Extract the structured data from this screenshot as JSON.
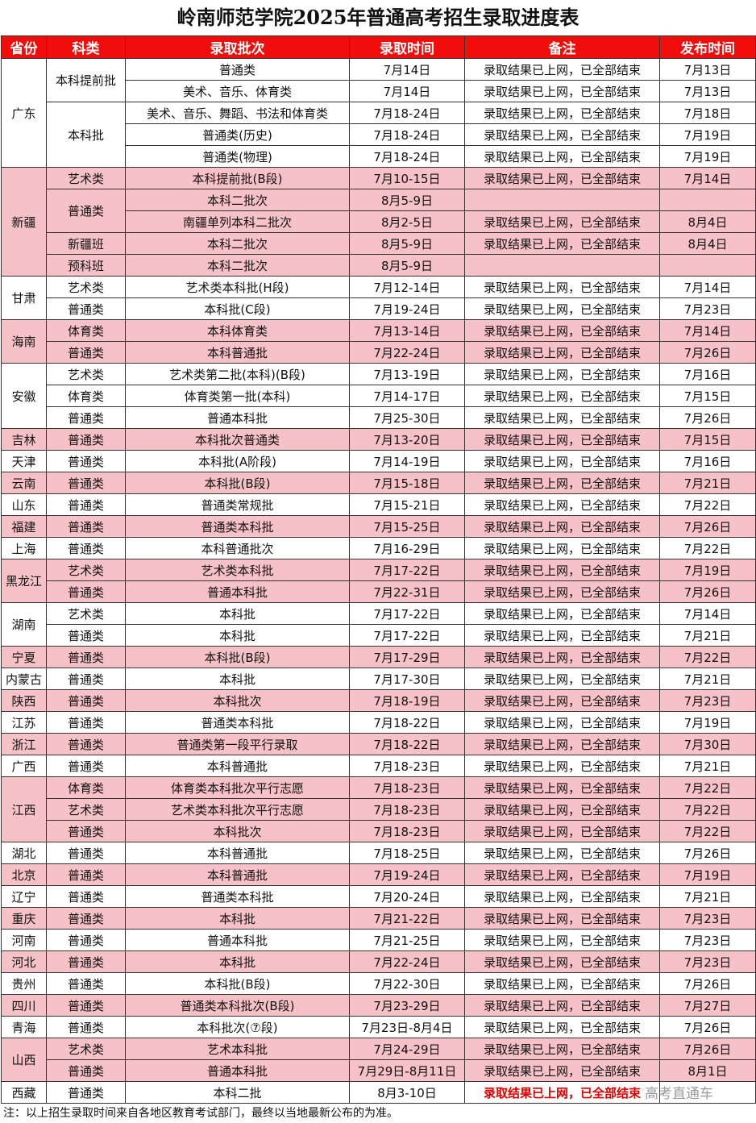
{
  "title": "岭南师范学院2025年普通高考招生录取进度表",
  "table": {
    "header": [
      "省份",
      "科类",
      "录取批次",
      "录取时间",
      "备注",
      "发布时间"
    ],
    "groups": [
      {
        "province": "广东",
        "categories": [
          {
            "name": "本科提前批",
            "rows": [
              [
                "普通类",
                "7月14日",
                "录取结果已上网，已全部结束",
                "7月13日"
              ],
              [
                "美术、音乐、体育类",
                "7月14日",
                "录取结果已上网，已全部结束",
                "7月13日"
              ]
            ]
          },
          {
            "name": "本科批",
            "rows": [
              [
                "美术、音乐、舞蹈、书法和体育类",
                "7月18-24日",
                "录取结果已上网，已全部结束",
                "7月18日"
              ],
              [
                "普通类(历史)",
                "7月18-24日",
                "录取结果已上网，已全部结束",
                "7月19日"
              ],
              [
                "普通类(物理)",
                "7月18-24日",
                "录取结果已上网，已全部结束",
                "7月19日"
              ]
            ]
          }
        ]
      },
      {
        "province": "新疆",
        "categories": [
          {
            "name": "艺术类",
            "rows": [
              [
                "本科提前批(B段)",
                "7月10-15日",
                "录取结果已上网，已全部结束",
                "7月14日"
              ]
            ]
          },
          {
            "name": "普通类",
            "rows": [
              [
                "本科二批次",
                "8月5-9日",
                null,
                null
              ],
              [
                "南疆单列本科二批次",
                "8月2-5日",
                "录取结果已上网，已全部结束",
                "8月4日"
              ]
            ]
          },
          {
            "name": "新疆班",
            "rows": [
              [
                "本科二批次",
                "8月5-9日",
                "录取结果已上网，已全部结束",
                "8月4日"
              ]
            ]
          },
          {
            "name": "预科班",
            "rows": [
              [
                "本科二批次",
                "8月5-9日",
                null,
                null
              ]
            ]
          }
        ]
      },
      {
        "province": "甘肃",
        "categories": [
          {
            "name": "艺术类",
            "rows": [
              [
                "艺术类本科批(H段)",
                "7月12-14日",
                "录取结果已上网，已全部结束",
                "7月14日"
              ]
            ]
          },
          {
            "name": "普通类",
            "rows": [
              [
                "本科批(C段)",
                "7月19-24日",
                "录取结果已上网，已全部结束",
                "7月23日"
              ]
            ]
          }
        ]
      },
      {
        "province": "海南",
        "categories": [
          {
            "name": "体育类",
            "rows": [
              [
                "本科体育类",
                "7月13-14日",
                "录取结果已上网，已全部结束",
                "7月14日"
              ]
            ]
          },
          {
            "name": "普通类",
            "rows": [
              [
                "本科普通批",
                "7月22-24日",
                "录取结果已上网，已全部结束",
                "7月26日"
              ]
            ]
          }
        ]
      },
      {
        "province": "安徽",
        "categories": [
          {
            "name": "艺术类",
            "rows": [
              [
                "艺术类第二批(本科)(B段)",
                "7月13-19日",
                "录取结果已上网，已全部结束",
                "7月16日"
              ]
            ]
          },
          {
            "name": "体育类",
            "rows": [
              [
                "体育类第一批(本科)",
                "7月14-17日",
                "录取结果已上网，已全部结束",
                "7月15日"
              ]
            ]
          },
          {
            "name": "普通类",
            "rows": [
              [
                "普通本科批",
                "7月25-30日",
                "录取结果已上网，已全部结束",
                "7月26日"
              ]
            ]
          }
        ]
      },
      {
        "province": "吉林",
        "categories": [
          {
            "name": "普通类",
            "rows": [
              [
                "本科批次普通类",
                "7月13-20日",
                "录取结果已上网，已全部结束",
                "7月15日"
              ]
            ]
          }
        ]
      },
      {
        "province": "天津",
        "categories": [
          {
            "name": "普通类",
            "rows": [
              [
                "本科批(A阶段)",
                "7月14-19日",
                "录取结果已上网，已全部结束",
                "7月16日"
              ]
            ]
          }
        ]
      },
      {
        "province": "云南",
        "categories": [
          {
            "name": "普通类",
            "rows": [
              [
                "本科批(B段)",
                "7月15-18日",
                "录取结果已上网，已全部结束",
                "7月21日"
              ]
            ]
          }
        ]
      },
      {
        "province": "山东",
        "categories": [
          {
            "name": "普通类",
            "rows": [
              [
                "普通类常规批",
                "7月15-21日",
                "录取结果已上网，已全部结束",
                "7月22日"
              ]
            ]
          }
        ]
      },
      {
        "province": "福建",
        "categories": [
          {
            "name": "普通类",
            "rows": [
              [
                "普通类本科批",
                "7月15-25日",
                "录取结果已上网，已全部结束",
                "7月26日"
              ]
            ]
          }
        ]
      },
      {
        "province": "上海",
        "categories": [
          {
            "name": "普通类",
            "rows": [
              [
                "本科普通批次",
                "7月16-29日",
                "录取结果已上网，已全部结束",
                "7月22日"
              ]
            ]
          }
        ]
      },
      {
        "province": "黑龙江",
        "categories": [
          {
            "name": "艺术类",
            "rows": [
              [
                "艺术类本科批",
                "7月17-22日",
                "录取结果已上网，已全部结束",
                "7月19日"
              ]
            ]
          },
          {
            "name": "普通类",
            "rows": [
              [
                "普通本科批",
                "7月22-31日",
                "录取结果已上网，已全部结束",
                "7月26日"
              ]
            ]
          }
        ]
      },
      {
        "province": "湖南",
        "categories": [
          {
            "name": "艺术类",
            "rows": [
              [
                "本科批",
                "7月17-22日",
                "录取结果已上网，已全部结束",
                "7月14日"
              ]
            ]
          },
          {
            "name": "普通类",
            "rows": [
              [
                "本科批",
                "7月17-22日",
                "录取结果已上网，已全部结束",
                "7月21日"
              ]
            ]
          }
        ]
      },
      {
        "province": "宁夏",
        "categories": [
          {
            "name": "普通类",
            "rows": [
              [
                "本科批(B段)",
                "7月17-29日",
                "录取结果已上网，已全部结束",
                "7月22日"
              ]
            ]
          }
        ]
      },
      {
        "province": "内蒙古",
        "categories": [
          {
            "name": "普通类",
            "rows": [
              [
                "本科批",
                "7月17-30日",
                "录取结果已上网，已全部结束",
                "7月21日"
              ]
            ]
          }
        ]
      },
      {
        "province": "陕西",
        "categories": [
          {
            "name": "普通类",
            "rows": [
              [
                "本科批次",
                "7月18-19日",
                "录取结果已上网，已全部结束",
                "7月23日"
              ]
            ]
          }
        ]
      },
      {
        "province": "江苏",
        "categories": [
          {
            "name": "普通类",
            "rows": [
              [
                "普通类本科批",
                "7月18-22日",
                "录取结果已上网，已全部结束",
                "7月19日"
              ]
            ]
          }
        ]
      },
      {
        "province": "浙江",
        "categories": [
          {
            "name": "普通类",
            "rows": [
              [
                "普通类第一段平行录取",
                "7月18-22日",
                "录取结果已上网，已全部结束",
                "7月30日"
              ]
            ]
          }
        ]
      },
      {
        "province": "广西",
        "categories": [
          {
            "name": "普通类",
            "rows": [
              [
                "本科普通批",
                "7月18-23日",
                "录取结果已上网，已全部结束",
                "7月21日"
              ]
            ]
          }
        ]
      },
      {
        "province": "江西",
        "categories": [
          {
            "name": "体育类",
            "rows": [
              [
                "体育类本科批次平行志愿",
                "7月18-23日",
                "录取结果已上网，已全部结束",
                "7月22日"
              ]
            ]
          },
          {
            "name": "艺术类",
            "rows": [
              [
                "艺术类本科批次平行志愿",
                "7月18-23日",
                "录取结果已上网，已全部结束",
                "7月22日"
              ]
            ]
          },
          {
            "name": "普通类",
            "rows": [
              [
                "本科批次",
                "7月18-23日",
                "录取结果已上网，已全部结束",
                "7月22日"
              ]
            ]
          }
        ]
      },
      {
        "province": "湖北",
        "categories": [
          {
            "name": "普通类",
            "rows": [
              [
                "本科普通批",
                "7月18-25日",
                "录取结果已上网，已全部结束",
                "7月26日"
              ]
            ]
          }
        ]
      },
      {
        "province": "北京",
        "categories": [
          {
            "name": "普通类",
            "rows": [
              [
                "本科普通批",
                "7月19-24日",
                "录取结果已上网，已全部结束",
                "7月19日"
              ]
            ]
          }
        ]
      },
      {
        "province": "辽宁",
        "categories": [
          {
            "name": "普通类",
            "rows": [
              [
                "普通类本科批",
                "7月20-24日",
                "录取结果已上网，已全部结束",
                "7月21日"
              ]
            ]
          }
        ]
      },
      {
        "province": "重庆",
        "categories": [
          {
            "name": "普通类",
            "rows": [
              [
                "本科批",
                "7月21-22日",
                "录取结果已上网，已全部结束",
                "7月23日"
              ]
            ]
          }
        ]
      },
      {
        "province": "河南",
        "categories": [
          {
            "name": "普通类",
            "rows": [
              [
                "普通本科批",
                "7月21-25日",
                "录取结果已上网，已全部结束",
                "7月23日"
              ]
            ]
          }
        ]
      },
      {
        "province": "河北",
        "categories": [
          {
            "name": "普通类",
            "rows": [
              [
                "本科批",
                "7月22-24日",
                "录取结果已上网，已全部结束",
                "7月23日"
              ]
            ]
          }
        ]
      },
      {
        "province": "贵州",
        "categories": [
          {
            "name": "普通类",
            "rows": [
              [
                "本科批(B段)",
                "7月22-30日",
                "录取结果已上网，已全部结束",
                "7月26日"
              ]
            ]
          }
        ]
      },
      {
        "province": "四川",
        "categories": [
          {
            "name": "普通类",
            "rows": [
              [
                "普通类本科批次(B段)",
                "7月23-29日",
                "录取结果已上网，已全部结束",
                "7月27日"
              ]
            ]
          }
        ]
      },
      {
        "province": "青海",
        "categories": [
          {
            "name": "普通类",
            "rows": [
              [
                "本科批次(⑦段)",
                "7月23日-8月4日",
                "录取结果已上网，已全部结束",
                "7月26日"
              ]
            ]
          }
        ]
      },
      {
        "province": "山西",
        "categories": [
          {
            "name": "艺术类",
            "rows": [
              [
                "艺术本科批",
                "7月24-29日",
                "录取结果已上网，已全部结束",
                "7月26日"
              ]
            ]
          },
          {
            "name": "普通类",
            "rows": [
              [
                "普通本科批",
                "7月29日-8月11日",
                "录取结果已上网，已全部结束",
                "8月1日"
              ]
            ]
          }
        ]
      },
      {
        "province": "西藏",
        "categories": [
          {
            "name": "普通类",
            "rows": [
              [
                "本科二批",
                "8月3-10日",
                "录取结果已上网，已全部结束",
                null
              ]
            ]
          }
        ]
      }
    ]
  },
  "footnote": "注：以上招生录取时间来自各地区教育考试部门，最终以当地最新公布的为准。",
  "watermark": "高考直通车"
}
